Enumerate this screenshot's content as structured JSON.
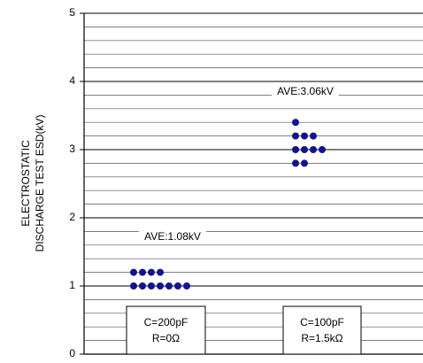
{
  "chart_data": {
    "type": "dot",
    "ylabel": [
      "ELECTROSTATIC",
      "DISCHARGE TEST ESD(kV)"
    ],
    "ylim": [
      0,
      5
    ],
    "yticks": [
      0,
      1,
      2,
      3,
      4,
      5
    ],
    "minor_yticks": [
      0.2,
      0.4,
      0.6,
      0.8,
      1.2,
      1.4,
      1.6,
      1.8,
      2.2,
      2.4,
      2.6,
      2.8,
      3.2,
      3.4,
      3.6,
      3.8,
      4.2,
      4.4,
      4.6,
      4.8
    ],
    "grid": true,
    "color": "#14148a",
    "groups": [
      {
        "label": [
          "C=200pF",
          "R=0Ω"
        ],
        "annotation": "AVE:1.08kV",
        "values": [
          1.2,
          1.2,
          1.2,
          1.2,
          1.0,
          1.0,
          1.0,
          1.0,
          1.0,
          1.0,
          1.0
        ]
      },
      {
        "label": [
          "C=100pF",
          "R=1.5kΩ"
        ],
        "annotation": "AVE:3.06kV",
        "values": [
          3.4,
          3.2,
          3.2,
          3.2,
          3.0,
          3.0,
          3.0,
          3.0,
          2.8,
          2.8
        ]
      }
    ]
  }
}
